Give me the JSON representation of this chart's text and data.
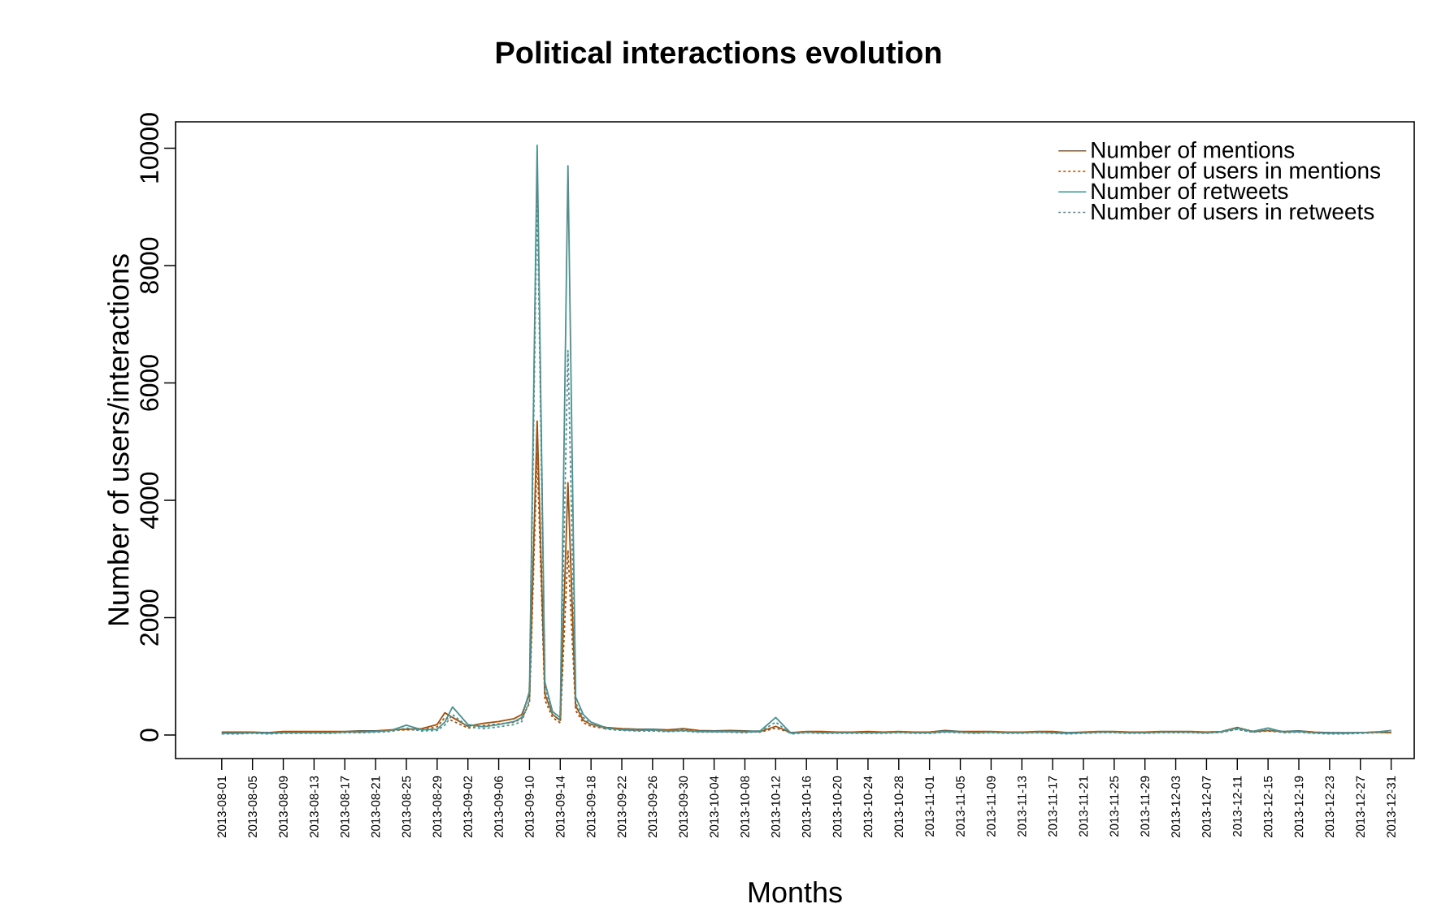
{
  "chart_data": {
    "type": "line",
    "title": "Political interactions evolution",
    "xlabel": "Months",
    "ylabel": "Number of users/interactions",
    "legend": "top right",
    "xlim": [
      "2013-07-26",
      "2014-01-03"
    ],
    "ylim": [
      -400,
      10450
    ],
    "yticks": [
      0,
      2000,
      4000,
      6000,
      8000,
      10000
    ],
    "xticks": [
      "2013-08-01",
      "2013-08-05",
      "2013-08-09",
      "2013-08-13",
      "2013-08-17",
      "2013-08-21",
      "2013-08-25",
      "2013-08-29",
      "2013-09-02",
      "2013-09-06",
      "2013-09-10",
      "2013-09-14",
      "2013-09-18",
      "2013-09-22",
      "2013-09-26",
      "2013-09-30",
      "2013-10-04",
      "2013-10-08",
      "2013-10-12",
      "2013-10-16",
      "2013-10-20",
      "2013-10-24",
      "2013-10-28",
      "2013-11-01",
      "2013-11-05",
      "2013-11-09",
      "2013-11-13",
      "2013-11-17",
      "2013-11-21",
      "2013-11-25",
      "2013-11-29",
      "2013-12-03",
      "2013-12-07",
      "2013-12-11",
      "2013-12-15",
      "2013-12-19",
      "2013-12-23",
      "2013-12-27",
      "2013-12-31"
    ],
    "x": [
      "2013-08-01",
      "2013-08-03",
      "2013-08-05",
      "2013-08-07",
      "2013-08-09",
      "2013-08-11",
      "2013-08-13",
      "2013-08-15",
      "2013-08-17",
      "2013-08-19",
      "2013-08-21",
      "2013-08-23",
      "2013-08-25",
      "2013-08-27",
      "2013-08-29",
      "2013-08-30",
      "2013-08-31",
      "2013-09-02",
      "2013-09-04",
      "2013-09-06",
      "2013-09-08",
      "2013-09-09",
      "2013-09-10",
      "2013-09-11",
      "2013-09-12",
      "2013-09-13",
      "2013-09-14",
      "2013-09-15",
      "2013-09-16",
      "2013-09-17",
      "2013-09-18",
      "2013-09-20",
      "2013-09-22",
      "2013-09-24",
      "2013-09-26",
      "2013-09-28",
      "2013-09-30",
      "2013-10-02",
      "2013-10-04",
      "2013-10-06",
      "2013-10-08",
      "2013-10-10",
      "2013-10-12",
      "2013-10-14",
      "2013-10-16",
      "2013-10-18",
      "2013-10-20",
      "2013-10-22",
      "2013-10-24",
      "2013-10-26",
      "2013-10-28",
      "2013-10-30",
      "2013-11-01",
      "2013-11-03",
      "2013-11-05",
      "2013-11-07",
      "2013-11-09",
      "2013-11-11",
      "2013-11-13",
      "2013-11-15",
      "2013-11-17",
      "2013-11-19",
      "2013-11-21",
      "2013-11-23",
      "2013-11-25",
      "2013-11-27",
      "2013-11-29",
      "2013-12-01",
      "2013-12-03",
      "2013-12-05",
      "2013-12-07",
      "2013-12-09",
      "2013-12-11",
      "2013-12-13",
      "2013-12-15",
      "2013-12-17",
      "2013-12-19",
      "2013-12-21",
      "2013-12-23",
      "2013-12-25",
      "2013-12-27",
      "2013-12-29",
      "2013-12-31"
    ],
    "series": [
      {
        "name": "Number of mentions",
        "color": "#a0500f",
        "line_style": "solid",
        "values": [
          50,
          50,
          50,
          40,
          60,
          60,
          60,
          60,
          60,
          70,
          70,
          90,
          100,
          110,
          180,
          380,
          300,
          150,
          200,
          230,
          280,
          350,
          700,
          5350,
          700,
          350,
          250,
          4300,
          500,
          250,
          180,
          130,
          110,
          100,
          100,
          90,
          110,
          80,
          70,
          80,
          70,
          60,
          150,
          40,
          60,
          60,
          50,
          50,
          60,
          50,
          60,
          50,
          50,
          80,
          60,
          60,
          60,
          50,
          50,
          60,
          60,
          40,
          50,
          60,
          60,
          50,
          50,
          60,
          60,
          60,
          50,
          60,
          130,
          60,
          80,
          60,
          70,
          50,
          40,
          40,
          40,
          50,
          40
        ]
      },
      {
        "name": "Number of users in mentions",
        "color": "#a0500f",
        "line_style": "dotted",
        "values": [
          40,
          40,
          40,
          40,
          50,
          50,
          50,
          50,
          50,
          60,
          60,
          80,
          90,
          90,
          140,
          300,
          240,
          120,
          160,
          190,
          220,
          280,
          550,
          4800,
          600,
          300,
          210,
          3150,
          420,
          210,
          150,
          110,
          100,
          90,
          80,
          80,
          90,
          70,
          60,
          60,
          60,
          50,
          120,
          40,
          50,
          50,
          40,
          40,
          50,
          40,
          50,
          40,
          40,
          70,
          50,
          50,
          50,
          40,
          40,
          50,
          50,
          40,
          40,
          50,
          50,
          40,
          40,
          50,
          50,
          50,
          40,
          50,
          100,
          50,
          70,
          50,
          60,
          40,
          40,
          30,
          40,
          40,
          40
        ]
      },
      {
        "name": "Number of retweets",
        "color": "#4c9090",
        "line_style": "solid",
        "values": [
          30,
          30,
          40,
          30,
          40,
          40,
          40,
          40,
          50,
          50,
          60,
          80,
          170,
          90,
          100,
          220,
          480,
          180,
          140,
          180,
          230,
          300,
          750,
          10050,
          900,
          400,
          300,
          9700,
          650,
          350,
          220,
          120,
          90,
          80,
          90,
          70,
          80,
          60,
          60,
          60,
          50,
          70,
          300,
          30,
          50,
          40,
          40,
          40,
          40,
          40,
          50,
          40,
          40,
          60,
          50,
          40,
          50,
          40,
          40,
          50,
          40,
          30,
          40,
          50,
          50,
          40,
          40,
          50,
          50,
          50,
          40,
          60,
          120,
          60,
          120,
          50,
          60,
          40,
          30,
          30,
          40,
          50,
          80
        ]
      },
      {
        "name": "Number of users in retweets",
        "color": "#4c9090",
        "line_style": "dotted",
        "values": [
          20,
          20,
          30,
          20,
          30,
          30,
          30,
          30,
          40,
          40,
          50,
          60,
          120,
          70,
          80,
          170,
          350,
          140,
          110,
          140,
          180,
          230,
          600,
          9300,
          800,
          350,
          260,
          6550,
          550,
          300,
          190,
          100,
          80,
          70,
          70,
          60,
          70,
          50,
          50,
          50,
          40,
          60,
          220,
          20,
          40,
          30,
          30,
          30,
          30,
          30,
          40,
          30,
          30,
          50,
          40,
          30,
          40,
          30,
          30,
          40,
          30,
          20,
          30,
          40,
          40,
          30,
          30,
          40,
          40,
          40,
          30,
          50,
          100,
          50,
          90,
          40,
          50,
          30,
          20,
          20,
          30,
          40,
          60
        ]
      }
    ]
  }
}
